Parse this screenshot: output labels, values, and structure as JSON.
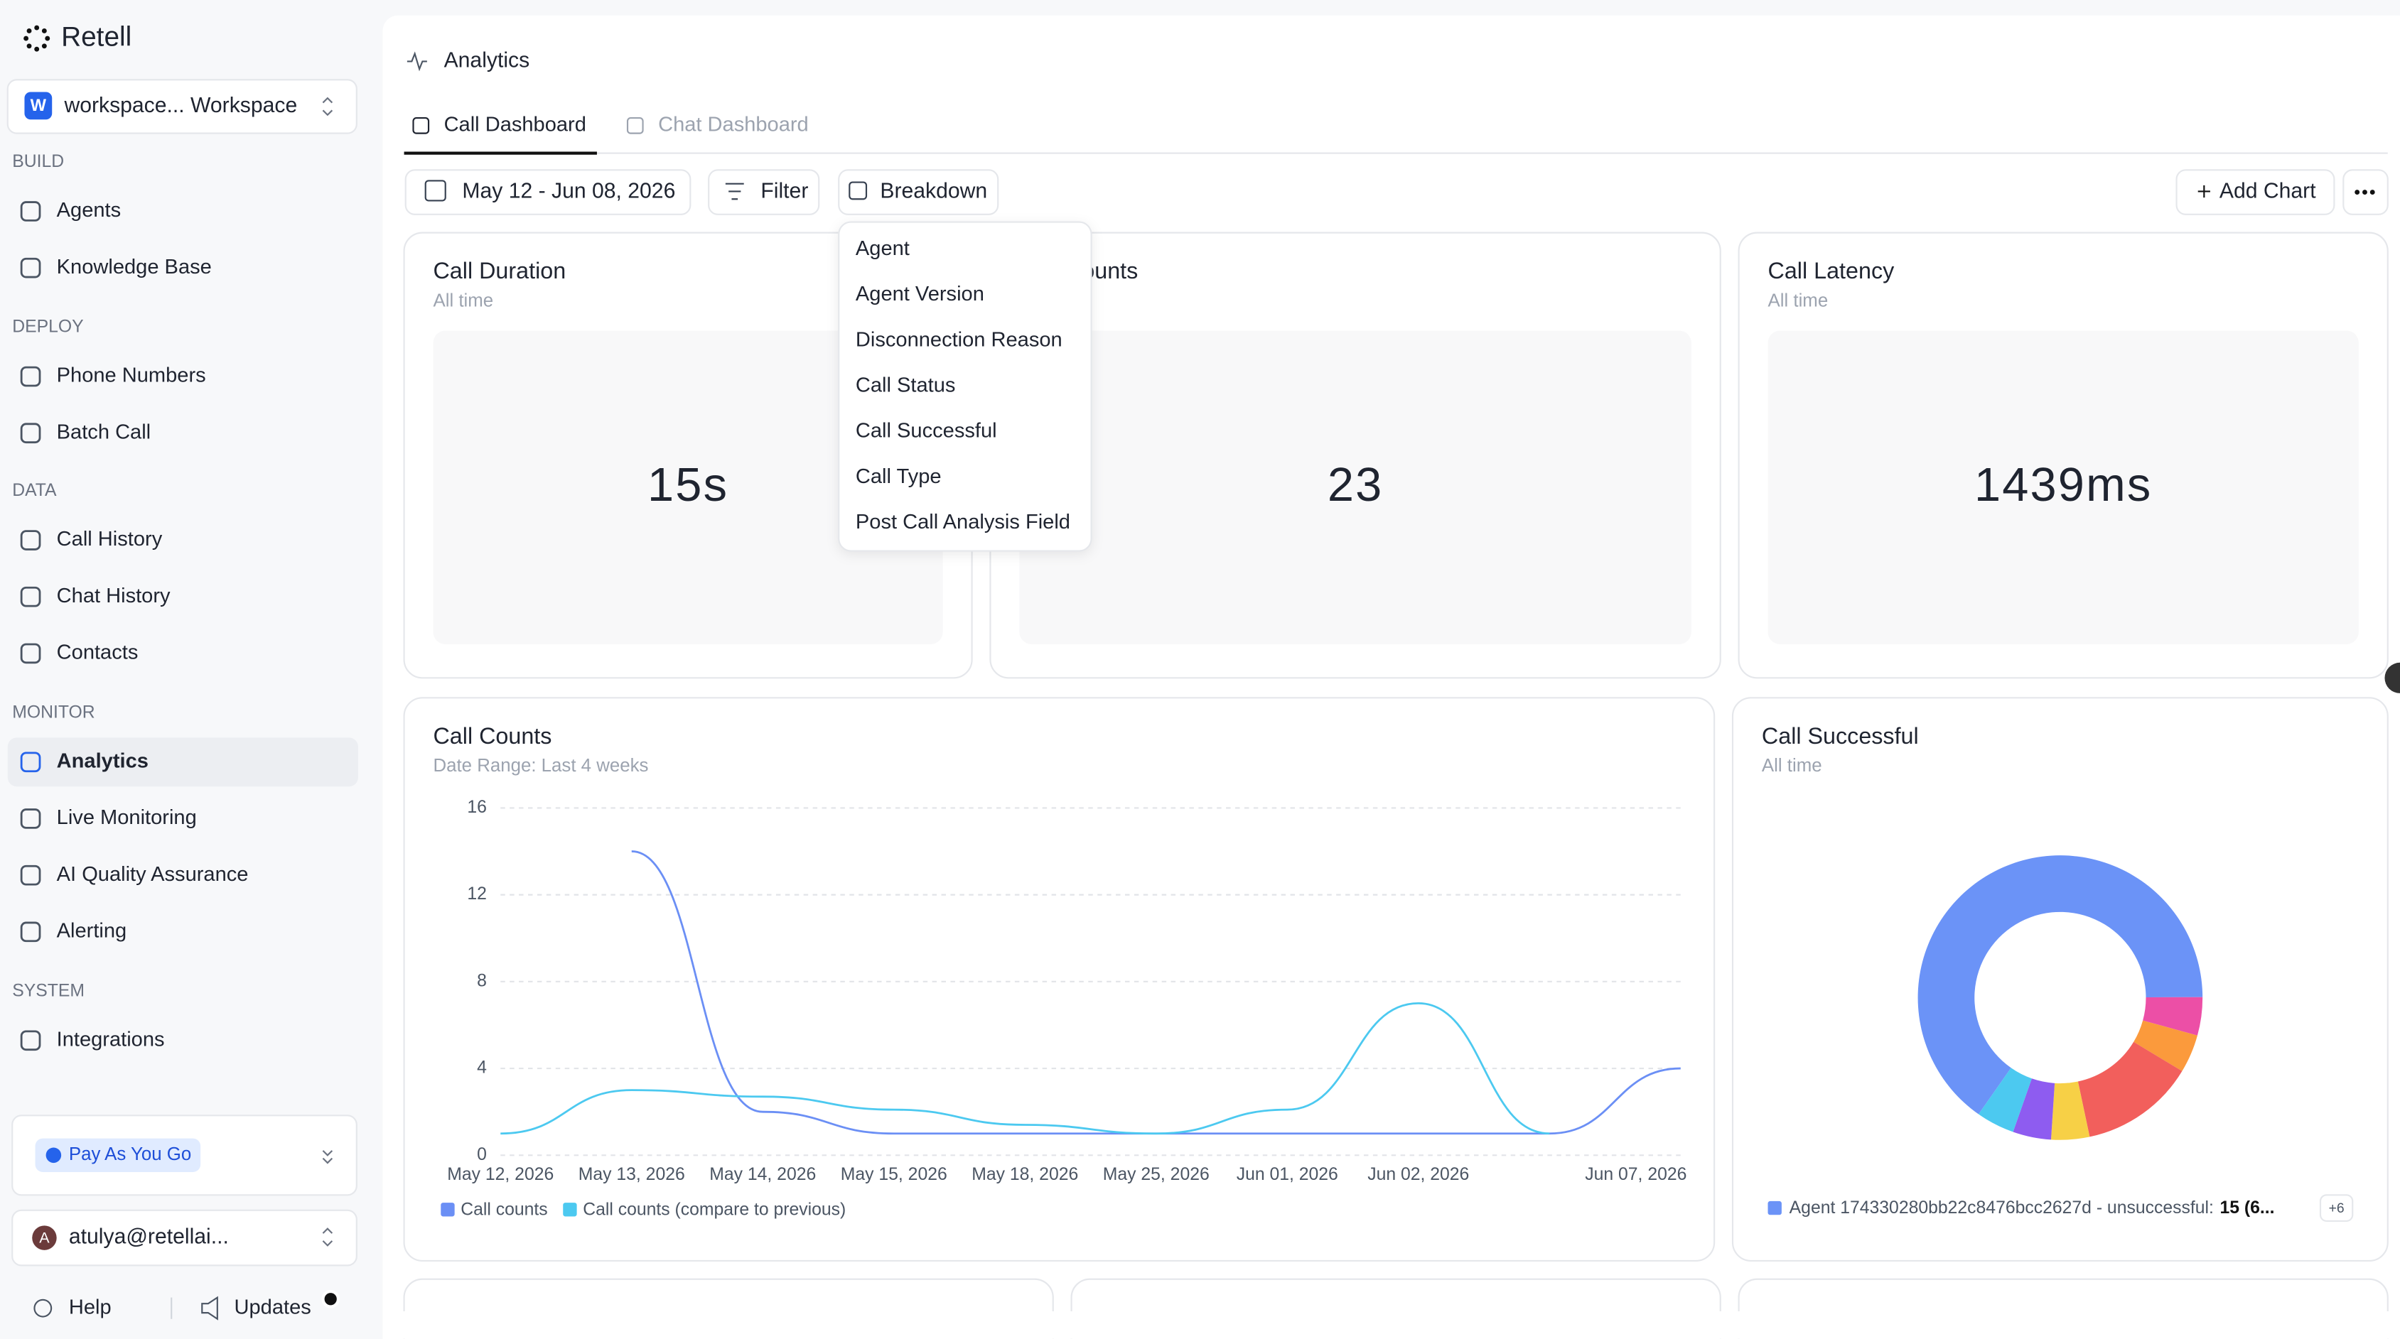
{
  "sidebar": {
    "brand": "Retell",
    "workspace": {
      "initial": "W",
      "name": "workspace... Workspace"
    },
    "sections": [
      {
        "title": "BUILD",
        "items": [
          {
            "label": "Agents"
          },
          {
            "label": "Knowledge Base"
          }
        ]
      },
      {
        "title": "DEPLOY",
        "items": [
          {
            "label": "Phone Numbers"
          },
          {
            "label": "Batch Call"
          }
        ]
      },
      {
        "title": "DATA",
        "items": [
          {
            "label": "Call History"
          },
          {
            "label": "Chat History"
          },
          {
            "label": "Contacts"
          }
        ]
      },
      {
        "title": "MONITOR",
        "items": [
          {
            "label": "Analytics",
            "active": true
          },
          {
            "label": "Live Monitoring"
          },
          {
            "label": "AI Quality Assurance"
          },
          {
            "label": "Alerting"
          }
        ]
      },
      {
        "title": "SYSTEM",
        "items": [
          {
            "label": "Integrations"
          }
        ]
      }
    ],
    "plan": "Pay As You Go",
    "user": {
      "initial": "A",
      "email": "atulya@retellai..."
    },
    "footer": [
      "Help",
      "Updates"
    ]
  },
  "header": {
    "title": "Analytics",
    "tabs": [
      {
        "label": "Call Dashboard",
        "active": true
      },
      {
        "label": "Chat Dashboard"
      }
    ]
  },
  "toolbar": {
    "date_range": "May 12 - Jun 08, 2026",
    "filter": "Filter",
    "breakdown": "Breakdown",
    "add_chart": "Add Chart"
  },
  "breakdown_menu": [
    "Agent",
    "Agent Version",
    "Disconnection Reason",
    "Call Status",
    "Call Successful",
    "Call Type",
    "Post Call Analysis Field"
  ],
  "stat_cards": [
    {
      "title": "Call Duration",
      "subtitle": "All time",
      "value": "15s"
    },
    {
      "title": "Call Counts",
      "value": "23"
    },
    {
      "title": "Call Latency",
      "subtitle": "All time",
      "value": "1439ms"
    }
  ],
  "chart_data": [
    {
      "type": "line",
      "title": "Call Counts",
      "subtitle": "Date Range: Last 4 weeks",
      "categories": [
        "May 12, 2026",
        "May 13, 2026",
        "May 14, 2026",
        "May 15, 2026",
        "May 18, 2026",
        "May 25, 2026",
        "Jun 01, 2026",
        "Jun 02, 2026",
        null,
        "Jun 07, 2026"
      ],
      "ylim": [
        0,
        16
      ],
      "yticks": [
        0,
        4,
        8,
        12,
        16
      ],
      "grid": true,
      "series": [
        {
          "name": "Call counts",
          "color": "#6b8ff5",
          "values": [
            null,
            14,
            2,
            1,
            1,
            1,
            1,
            1,
            1,
            4
          ]
        },
        {
          "name": "Call counts (compare to previous)",
          "color": "#4cc9f0",
          "values": [
            1,
            3,
            2.7,
            2.1,
            1.4,
            1,
            2.1,
            7,
            1,
            null
          ]
        }
      ]
    },
    {
      "type": "pie",
      "title": "Call Successful",
      "subtitle": "All time",
      "values": [
        15,
        1,
        1,
        3,
        1,
        1,
        1
      ],
      "colors": [
        "#6b93f7",
        "#ec4fa6",
        "#fb9a3c",
        "#f25f5c",
        "#f7d046",
        "#8e5cf0",
        "#4cc9f0"
      ],
      "legend": {
        "name": "Agent 174330280bb22c8476bcc2627d - unsuccessful:",
        "value_label": "15 (6...",
        "more": "+6"
      }
    }
  ]
}
